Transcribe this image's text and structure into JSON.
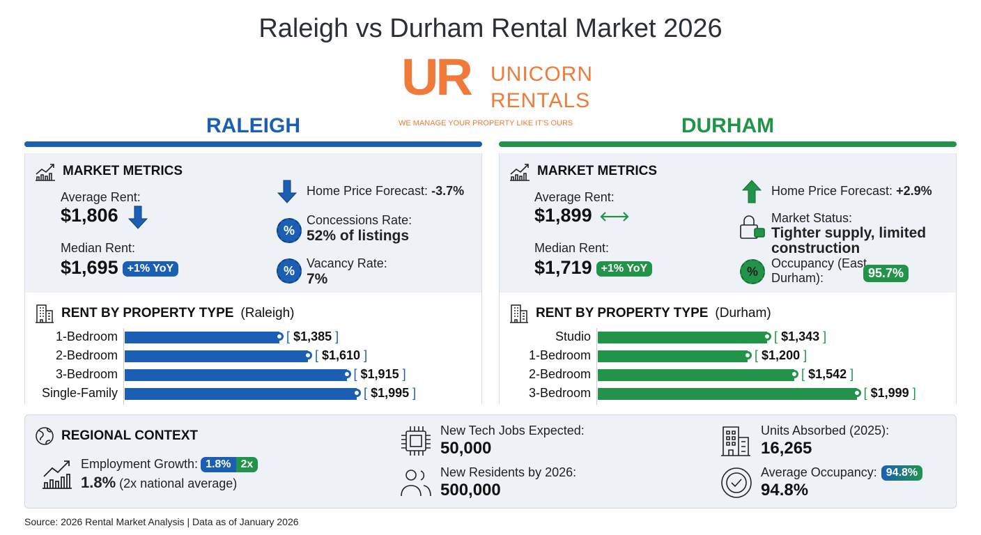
{
  "title": "Raleigh vs Durham Rental Market 2026",
  "logo": {
    "mark": "UR",
    "line1": "UNICORN",
    "line2": "RENTALS",
    "tagline": "WE MANAGE YOUR PROPERTY LIKE IT'S OURS"
  },
  "colors": {
    "raleigh": "#1a5fb4",
    "durham": "#21944a",
    "logo": "#f07a3a"
  },
  "raleigh": {
    "heading": "RALEIGH",
    "metrics_title": "MARKET METRICS",
    "avg_label": "Average Rent:",
    "avg_value": "$1,806",
    "avg_trend": "down",
    "median_label": "Median Rent:",
    "median_value": "$1,695",
    "median_badge": "+1% YoY",
    "forecast_label": "Home Price Forecast:",
    "forecast_value": "-3.7%",
    "concessions_label": "Concessions Rate:",
    "concessions_value": "52% of listings",
    "vacancy_label": "Vacancy Rate:",
    "vacancy_value": "7%",
    "rent_title": "RENT BY PROPERTY TYPE",
    "rent_city": "(Raleigh)",
    "rents": [
      {
        "type": "1-Bedroom",
        "value": 1385,
        "label": "$1,385"
      },
      {
        "type": "2-Bedroom",
        "value": 1610,
        "label": "$1,610"
      },
      {
        "type": "3-Bedroom",
        "value": 1915,
        "label": "$1,915"
      },
      {
        "type": "Single-Family",
        "value": 1995,
        "label": "$1,995"
      }
    ]
  },
  "durham": {
    "heading": "DURHAM",
    "metrics_title": "MARKET METRICS",
    "avg_label": "Average Rent:",
    "avg_value": "$1,899",
    "avg_trend": "flat",
    "median_label": "Median Rent:",
    "median_value": "$1,719",
    "median_badge": "+1% YoY",
    "forecast_label": "Home Price Forecast:",
    "forecast_value": "+2.9%",
    "status_label": "Market Status:",
    "status_value": "Tighter supply, limited construction",
    "occupancy_label": "Occupancy (East Durham):",
    "occupancy_value": "95.7%",
    "rent_title": "RENT BY PROPERTY TYPE",
    "rent_city": "(Durham)",
    "rents": [
      {
        "type": "Studio",
        "value": 1343,
        "label": "$1,343"
      },
      {
        "type": "1-Bedroom",
        "value": 1200,
        "label": "$1,200"
      },
      {
        "type": "2-Bedroom",
        "value": 1542,
        "label": "$1,542"
      },
      {
        "type": "3-Bedroom",
        "value": 1999,
        "label": "$1,999"
      }
    ]
  },
  "regional": {
    "title": "REGIONAL CONTEXT",
    "employment_label": "Employment Growth:",
    "employment_badge_a": "1.8%",
    "employment_badge_b": "2x",
    "employment_value": "1.8%",
    "employment_note": "(2x national average)",
    "jobs_label": "New Tech Jobs Expected:",
    "jobs_value": "50,000",
    "residents_label": "New Residents by 2026:",
    "residents_value": "500,000",
    "units_label": "Units Absorbed (2025):",
    "units_value": "16,265",
    "occupancy_label": "Average Occupancy:",
    "occupancy_badge": "94.8%",
    "occupancy_value": "94.8%"
  },
  "source": "Source: 2026 Rental Market Analysis | Data as of January 2026"
}
